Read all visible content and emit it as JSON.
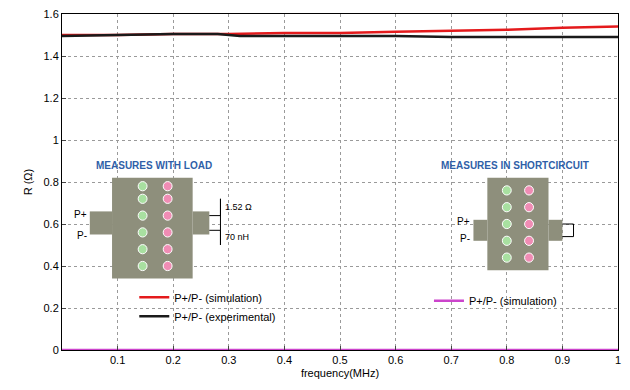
{
  "chart_data": {
    "type": "line",
    "x_label": "frequency(MHz)",
    "y_label": "R (Ω)",
    "xlim": [
      0,
      1
    ],
    "xticks": [
      0.1,
      0.2,
      0.3,
      0.4,
      0.5,
      0.6,
      0.7,
      0.8,
      0.9,
      1
    ],
    "ylim": [
      0,
      1.6
    ],
    "yticks": [
      0,
      0.2,
      0.4,
      0.6,
      0.8,
      1,
      1.2,
      1.4,
      1.6
    ],
    "grid": true,
    "series": [
      {
        "name": "P+/P- (simulation)",
        "color": "#e41a1c",
        "line_style": "solid",
        "legend": "bottom-left",
        "x": [
          0,
          0.1,
          0.2,
          0.3,
          0.4,
          0.5,
          0.6,
          0.7,
          0.8,
          0.9,
          1
        ],
        "values": [
          1.5,
          1.5,
          1.505,
          1.505,
          1.51,
          1.51,
          1.515,
          1.52,
          1.525,
          1.535,
          1.54
        ]
      },
      {
        "name": "P+/P- (experimental)",
        "color": "#1a1a1a",
        "line_style": "solid",
        "legend": "bottom-left",
        "x": [
          0,
          0.1,
          0.2,
          0.28,
          0.32,
          0.4,
          0.5,
          0.6,
          0.7,
          0.8,
          0.9,
          1
        ],
        "values": [
          1.495,
          1.5,
          1.505,
          1.505,
          1.495,
          1.495,
          1.495,
          1.495,
          1.49,
          1.49,
          1.49,
          1.49
        ]
      },
      {
        "name": "P+/P- (simulation)",
        "color": "#cc44cc",
        "line_style": "solid",
        "legend": "bottom-right",
        "x": [
          0,
          0.1,
          0.2,
          0.3,
          0.4,
          0.5,
          0.6,
          0.7,
          0.8,
          0.9,
          1
        ],
        "values": [
          0,
          0,
          0,
          0,
          0,
          0,
          0,
          0,
          0,
          0,
          0
        ]
      }
    ],
    "annotations": [
      "MEASURES WITH LOAD",
      "P+",
      "P-",
      "1.52 Ω",
      "70 nH",
      "MEASURES IN SHORTCIRCUIT",
      "P+",
      "P-"
    ]
  }
}
